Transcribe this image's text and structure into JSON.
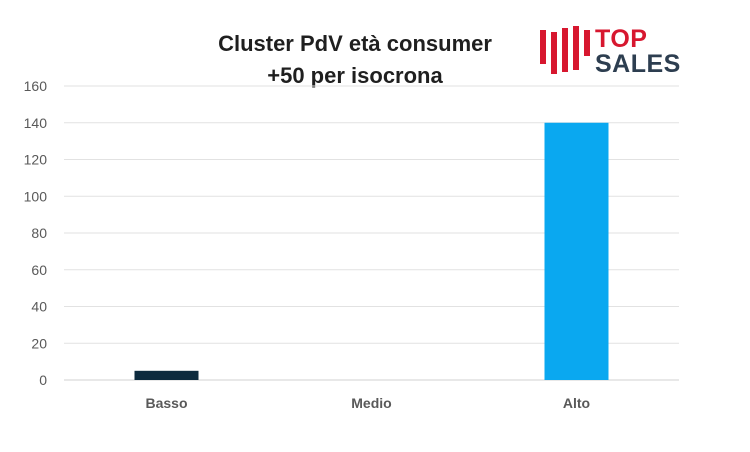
{
  "chart_data": {
    "type": "bar",
    "title_line1": "Cluster PdV età consumer",
    "title_line2": "+50 per isocrona",
    "categories": [
      "Basso",
      "Medio",
      "Alto"
    ],
    "values": [
      5,
      0,
      140
    ],
    "colors": [
      "#0d2b3e",
      "#0d2b3e",
      "#0aa8f0"
    ],
    "ylim": [
      0,
      160
    ],
    "yticks": [
      0,
      20,
      40,
      60,
      80,
      100,
      120,
      140,
      160
    ],
    "grid": true,
    "xlabel": "",
    "ylabel": ""
  },
  "logo": {
    "line1": "TOP",
    "line2": "SALES",
    "red": "#d7172f",
    "dark": "#2d3e50"
  }
}
